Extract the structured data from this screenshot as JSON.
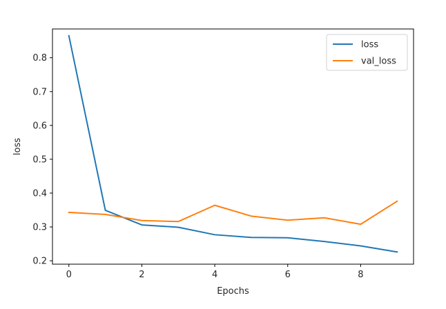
{
  "chart_data": {
    "type": "line",
    "title": "",
    "xlabel": "Epochs",
    "ylabel": "loss",
    "x": [
      0,
      1,
      2,
      3,
      4,
      5,
      6,
      7,
      8,
      9
    ],
    "xlim": [
      -0.45,
      9.45
    ],
    "ylim": [
      0.19,
      0.885
    ],
    "x_ticks": [
      0,
      2,
      4,
      6,
      8
    ],
    "y_ticks": [
      0.2,
      0.3,
      0.4,
      0.5,
      0.6,
      0.7,
      0.8
    ],
    "grid": false,
    "legend_position": "top-right",
    "series": [
      {
        "name": "loss",
        "color": "#1f77b4",
        "values": [
          0.865,
          0.349,
          0.306,
          0.299,
          0.277,
          0.269,
          0.268,
          0.257,
          0.244,
          0.226
        ]
      },
      {
        "name": "val_loss",
        "color": "#ff7f0e",
        "values": [
          0.343,
          0.337,
          0.319,
          0.316,
          0.364,
          0.332,
          0.32,
          0.327,
          0.308,
          0.376
        ]
      }
    ]
  }
}
